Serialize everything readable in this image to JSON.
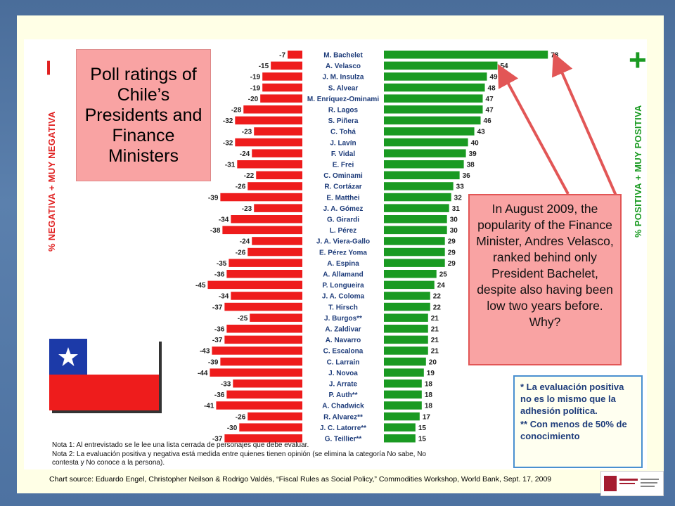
{
  "caption": "Poll ratings of Chile’s Presidents and Finance Ministers",
  "callout": "In August 2009, the popularity of the Finance Minister, Andres Velasco, ranked behind only President Bachelet, despite also having been low two years before.   Why?",
  "neg_axis": {
    "symbol": "–",
    "label": "% NEGATIVA + MUY NEGATIVA"
  },
  "pos_axis": {
    "symbol": "+",
    "label": "% POSITIVA + MUY POSITIVA"
  },
  "legend_note": {
    "line1": "*   La evaluación positiva no es lo mismo que la adhesión política.",
    "line2": "** Con menos de 50% de conocimiento"
  },
  "notes": {
    "nota1": "Nota 1:  Al entrevistado se le lee una lista cerrada de personajes que debe evaluar.",
    "nota2a": "Nota 2:  La evaluación positiva y negativa está medida entre quienes tienen opinión (se elimina la categoría No sabe, No",
    "nota2b": "             contesta y No conoce a la persona)."
  },
  "source": "Chart source: Eduardo Engel, Christopher Neilson & Rodrigo Valdés, “Fiscal Rules as Social Policy,”  Commodities Workshop, World Bank, Sept. 17, 2009",
  "colors": {
    "negative": "#ee1c1c",
    "positive": "#1a9a22",
    "neg_text": "#e02020",
    "pos_text": "#1a9a22",
    "arrow": "#e25656"
  },
  "chart_data": {
    "type": "bar",
    "orientation": "horizontal-diverging",
    "categories": [
      "M. Bachelet",
      "A. Velasco",
      "J. M. Insulza",
      "S. Alvear",
      "M. Enríquez-Ominami",
      "R. Lagos",
      "S. Piñera",
      "C. Tohá",
      "J. Lavín",
      "F. Vidal",
      "E. Frei",
      "C. Ominami",
      "R. Cortázar",
      "E. Matthei",
      "J. A. Gómez",
      "G. Girardi",
      "L. Pérez",
      "J. A. Viera-Gallo",
      "E. Pérez Yoma",
      "A. Espina",
      "A. Allamand",
      "P. Longueira",
      "J. A. Coloma",
      "T. Hirsch",
      "J. Burgos**",
      "A. Zaldivar",
      "A. Navarro",
      "C. Escalona",
      "C. Larrain",
      "J. Novoa",
      "J. Arrate",
      "P. Auth**",
      "A. Chadwick",
      "R. Alvarez**",
      "J. C. Latorre**",
      "G. Teillier**"
    ],
    "series": [
      {
        "values": [
          -7,
          -15,
          -19,
          -19,
          -20,
          -28,
          -32,
          -23,
          -32,
          -24,
          -31,
          -22,
          -26,
          -39,
          -23,
          -34,
          -38,
          -24,
          -26,
          -35,
          -36,
          -45,
          -34,
          -37,
          -25,
          -36,
          -37,
          -43,
          -39,
          -44,
          -33,
          -36,
          -41,
          -26,
          -30,
          -37
        ]
      },
      {
        "values": [
          78,
          54,
          49,
          48,
          47,
          47,
          46,
          43,
          40,
          39,
          38,
          36,
          33,
          32,
          31,
          30,
          30,
          29,
          29,
          29,
          25,
          24,
          22,
          22,
          21,
          21,
          21,
          21,
          20,
          19,
          18,
          18,
          18,
          17,
          15,
          15
        ]
      }
    ],
    "annotations": [
      "In August 2009, the popularity of the Finance Minister, Andres Velasco, ranked behind only President Bachelet, despite also having been low two years before.   Why?"
    ]
  }
}
